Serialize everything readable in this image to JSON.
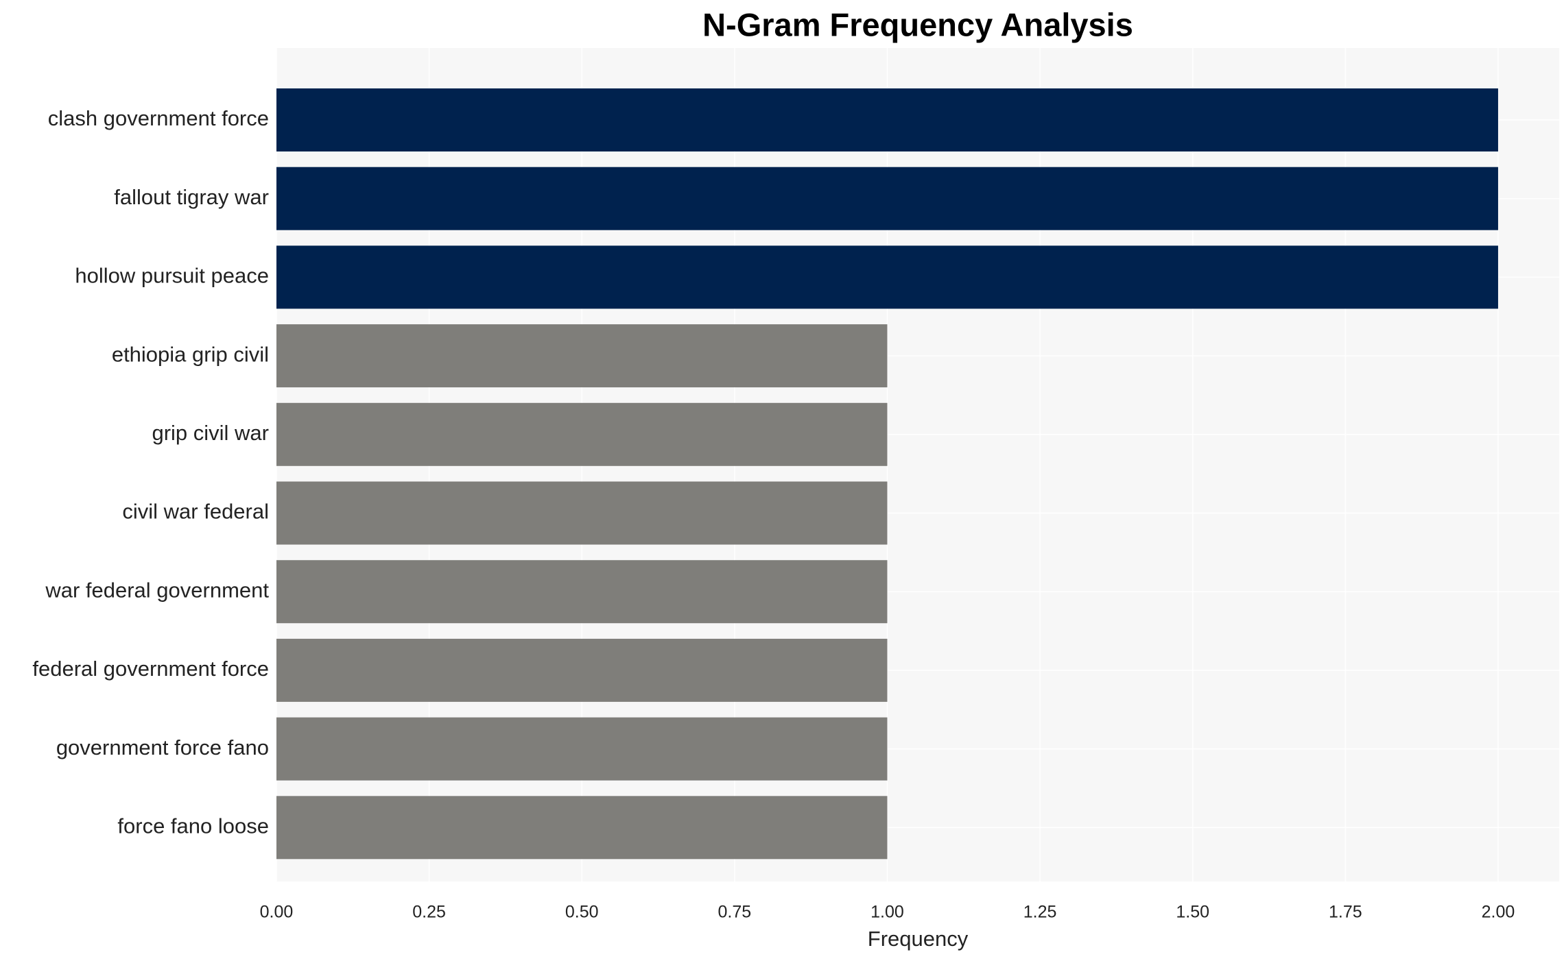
{
  "chart_data": {
    "type": "barh",
    "title": "N-Gram Frequency Analysis",
    "x_label": "Frequency",
    "categories": [
      "clash government force",
      "fallout tigray war",
      "hollow pursuit peace",
      "ethiopia grip civil",
      "grip civil war",
      "civil war federal",
      "war federal government",
      "federal government force",
      "government force fano",
      "force fano loose"
    ],
    "values": [
      2,
      2,
      2,
      1,
      1,
      1,
      1,
      1,
      1,
      1
    ],
    "colors": [
      "#00224e",
      "#00224e",
      "#00224e",
      "#7f7e7a",
      "#7f7e7a",
      "#7f7e7a",
      "#7f7e7a",
      "#7f7e7a",
      "#7f7e7a",
      "#7f7e7a"
    ],
    "xlim": [
      0,
      2.1
    ],
    "xticks": [
      {
        "value": 0,
        "label": "0.00"
      },
      {
        "value": 0.25,
        "label": "0.25"
      },
      {
        "value": 0.5,
        "label": "0.50"
      },
      {
        "value": 0.75,
        "label": "0.75"
      },
      {
        "value": 1,
        "label": "1.00"
      },
      {
        "value": 1.25,
        "label": "1.25"
      },
      {
        "value": 1.5,
        "label": "1.50"
      },
      {
        "value": 1.75,
        "label": "1.75"
      },
      {
        "value": 2,
        "label": "2.00"
      }
    ],
    "grid": true
  }
}
